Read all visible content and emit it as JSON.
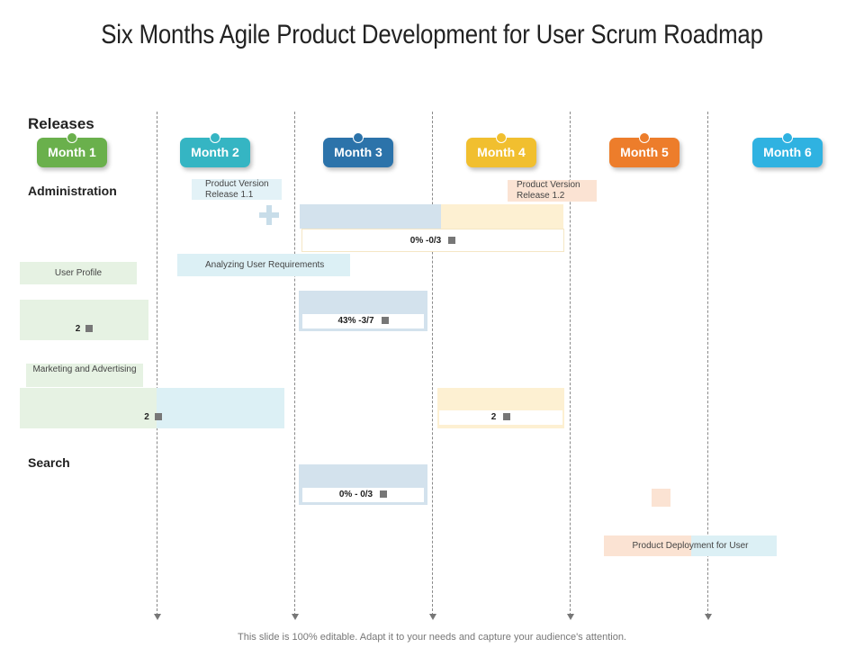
{
  "title": "Six Months Agile Product Development for User Scrum Roadmap",
  "releases_label": "Releases",
  "months": [
    {
      "label": "Month 1",
      "color": "#6ab04c",
      "dot": "#6ab04c"
    },
    {
      "label": "Month 2",
      "color": "#35b5c3",
      "dot": "#35b5c3"
    },
    {
      "label": "Month 3",
      "color": "#2c73aa",
      "dot": "#2c73aa"
    },
    {
      "label": "Month 4",
      "color": "#f1bf2f",
      "dot": "#f1bf2f"
    },
    {
      "label": "Month 5",
      "color": "#ed7d2b",
      "dot": "#ed7d2b"
    },
    {
      "label": "Month 6",
      "color": "#2fb2e1",
      "dot": "#2fb2e1"
    }
  ],
  "sections": {
    "administration": "Administration",
    "search": "Search"
  },
  "items": {
    "pv11": "Product Version Release 1.1",
    "pv12": "Product Version Release 1.2",
    "analyzing": "Analyzing User Requirements",
    "user_profile": "User Profile",
    "marketing": "Marketing and Advertising",
    "deployment": "Product Deployment for User"
  },
  "progress": {
    "p1": "0% -0/3",
    "p2": "43% -3/7",
    "p3": "2",
    "p4": "2",
    "p5": "2",
    "p6": "0% - 0/3"
  },
  "footer": "This slide is 100% editable. Adapt it to your needs and capture your audience's attention."
}
